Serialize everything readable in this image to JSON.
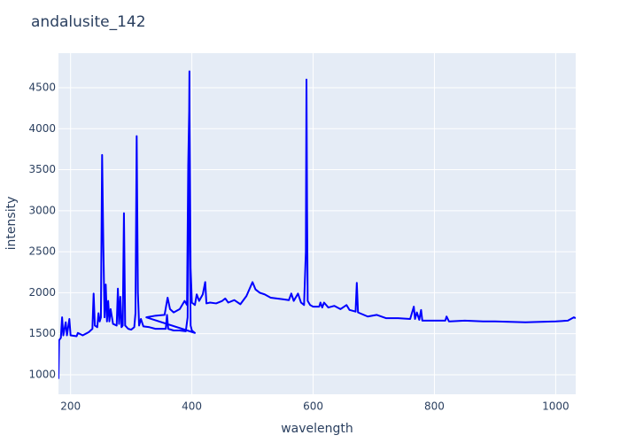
{
  "chart_data": {
    "type": "line",
    "title": "andalusite_142",
    "x_label": "wavelength",
    "y_label": "intensity",
    "xlim": [
      180,
      1033
    ],
    "ylim": [
      762,
      4921
    ],
    "xticks": [
      200,
      400,
      600,
      800,
      1000
    ],
    "yticks": [
      1000,
      1500,
      2000,
      2500,
      3000,
      3500,
      4000,
      4500
    ],
    "grid": true,
    "series": [
      {
        "name": "andalusite_142",
        "color": "#0000ff",
        "x": [
          180,
          181,
          184,
          186,
          188,
          192,
          194,
          198,
          200,
          210,
          212,
          220,
          230,
          236,
          238,
          240,
          244,
          246,
          248,
          250,
          252,
          254,
          256,
          258,
          260,
          262,
          264,
          266,
          270,
          276,
          278,
          280,
          282,
          284,
          286,
          288,
          290,
          295,
          300,
          305,
          307,
          309,
          311,
          313,
          316,
          320,
          330,
          340,
          350,
          357,
          359,
          361,
          370,
          380,
          390,
          393,
          395,
          396,
          397,
          398,
          400,
          405,
          325,
          340,
          355,
          360,
          364,
          370,
          380,
          388,
          392,
          394,
          396,
          398,
          400,
          405,
          408,
          412,
          418,
          422,
          424,
          430,
          440,
          450,
          455,
          460,
          470,
          480,
          490,
          500,
          505,
          512,
          520,
          530,
          540,
          550,
          560,
          564,
          568,
          575,
          580,
          585,
          588,
          589,
          590,
          591,
          595,
          600,
          610,
          612,
          615,
          618,
          625,
          635,
          645,
          655,
          660,
          670,
          672,
          674,
          690,
          705,
          720,
          740,
          760,
          766,
          768,
          771,
          775,
          778,
          780,
          800,
          818,
          820,
          824,
          850,
          880,
          900,
          950,
          1000,
          1020,
          1030,
          1033
        ],
        "values": [
          950,
          1420,
          1450,
          1700,
          1480,
          1640,
          1480,
          1680,
          1480,
          1470,
          1510,
          1480,
          1520,
          1560,
          1990,
          1600,
          1580,
          1750,
          1650,
          1700,
          3680,
          2580,
          1700,
          2100,
          1650,
          1900,
          1650,
          1800,
          1620,
          1600,
          2050,
          1620,
          1950,
          1580,
          1600,
          2970,
          1600,
          1560,
          1550,
          1580,
          1750,
          3910,
          2000,
          1600,
          1680,
          1590,
          1580,
          1560,
          1560,
          1560,
          1730,
          1560,
          1540,
          1540,
          1530,
          1700,
          3600,
          4700,
          2500,
          1600,
          1540,
          1510,
          1700,
          1720,
          1730,
          1940,
          1800,
          1760,
          1800,
          1900,
          1850,
          3550,
          4400,
          2300,
          1880,
          1850,
          1980,
          1900,
          1980,
          2130,
          1870,
          1880,
          1870,
          1900,
          1930,
          1880,
          1910,
          1860,
          1960,
          2130,
          2040,
          2000,
          1980,
          1940,
          1930,
          1920,
          1910,
          1990,
          1900,
          1990,
          1880,
          1850,
          2500,
          4600,
          3000,
          1900,
          1850,
          1830,
          1830,
          1880,
          1820,
          1880,
          1820,
          1840,
          1800,
          1850,
          1790,
          1770,
          2120,
          1760,
          1710,
          1730,
          1690,
          1690,
          1680,
          1830,
          1680,
          1760,
          1670,
          1790,
          1660,
          1660,
          1660,
          1710,
          1650,
          1660,
          1650,
          1650,
          1640,
          1650,
          1660,
          1700,
          1690
        ]
      }
    ]
  }
}
